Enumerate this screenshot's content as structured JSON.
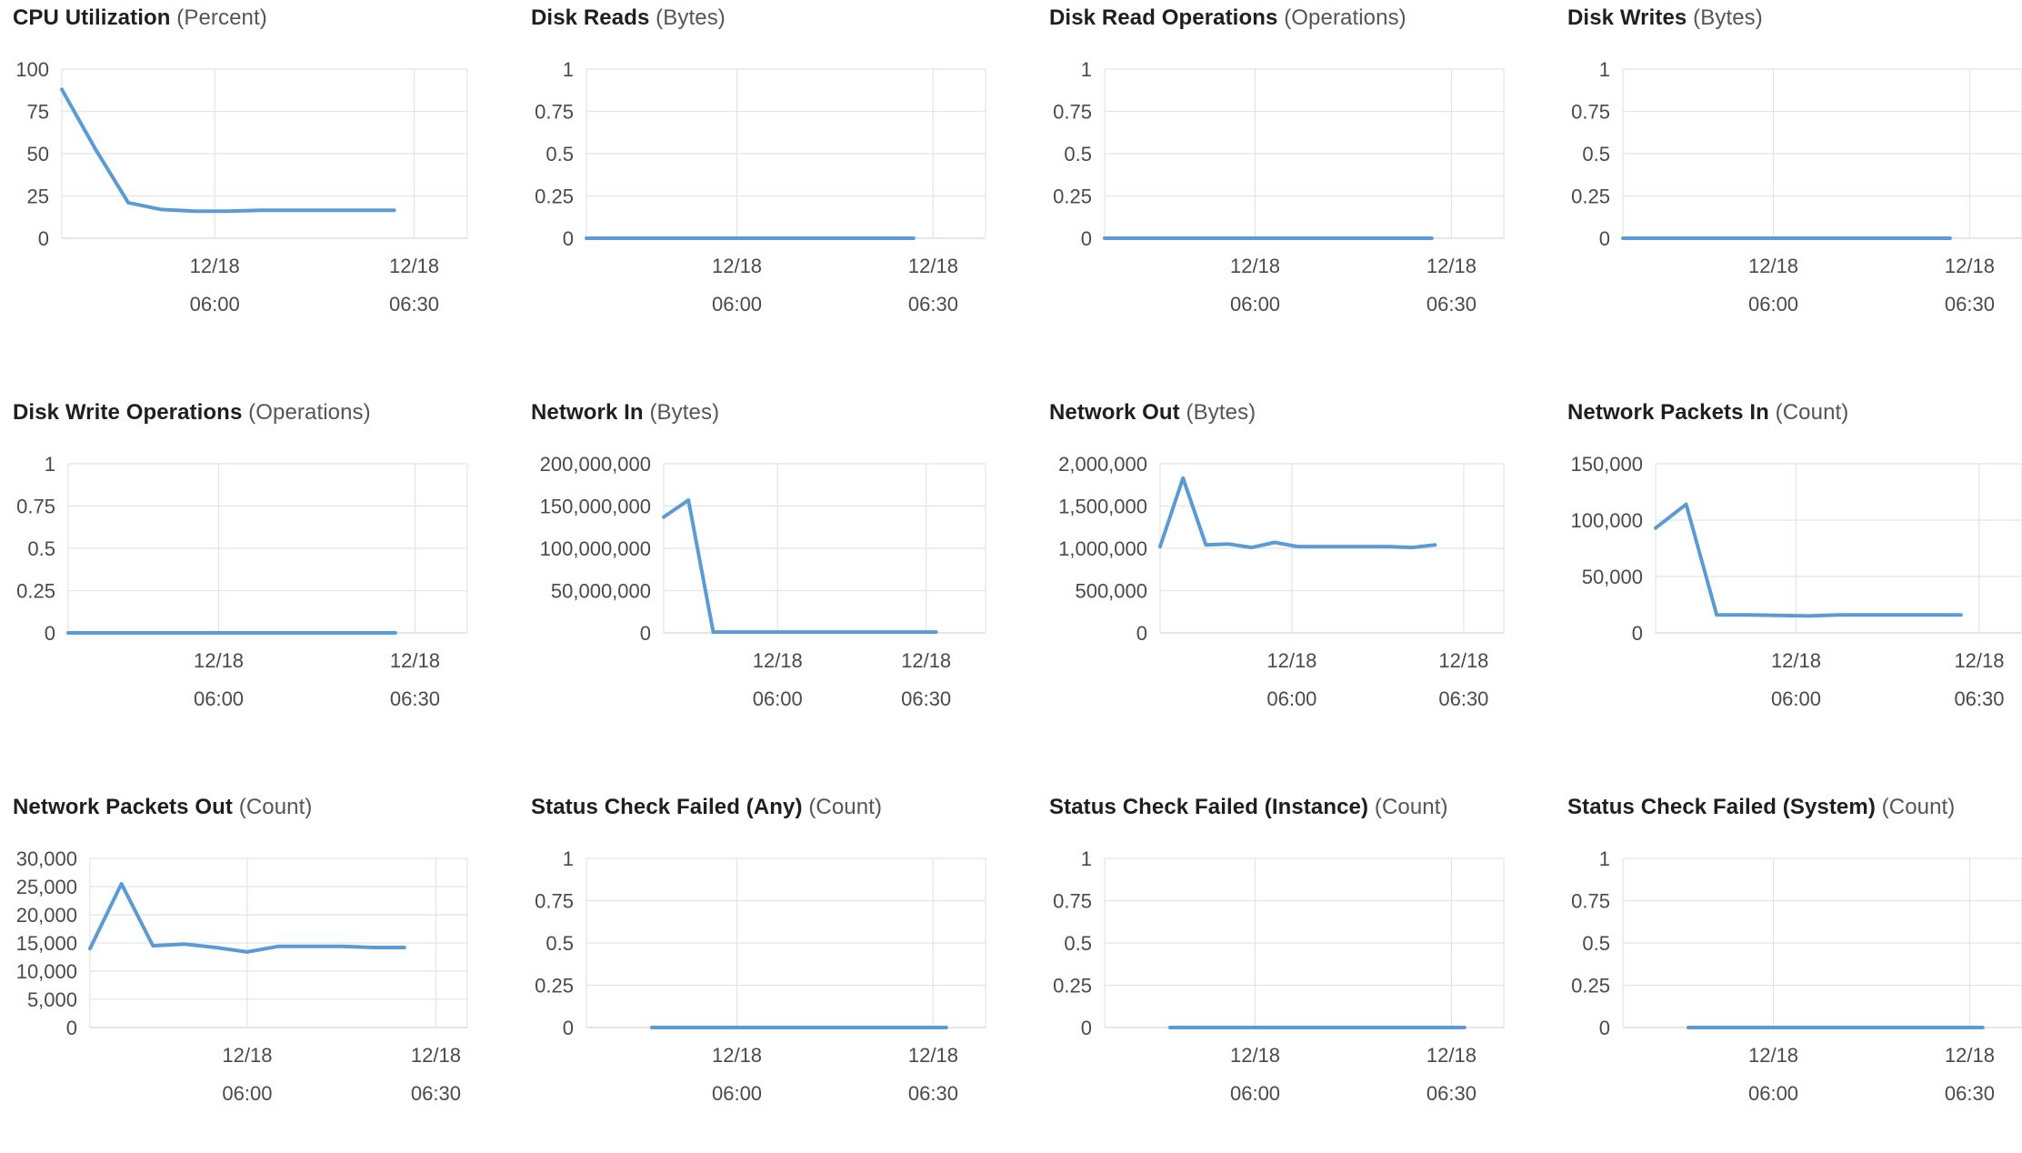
{
  "colors": {
    "series": "#5b9bd5",
    "grid": "#e4e4e4",
    "axis": "#d6d6d6"
  },
  "chart_data": [
    {
      "type": "line",
      "title": "CPU Utilization",
      "unit": "(Percent)",
      "yticks": [
        "100",
        "75",
        "50",
        "25",
        "0"
      ],
      "ylim": [
        0,
        100
      ],
      "xticks": [
        [
          "12/18",
          "06:00"
        ],
        [
          "12/18",
          "06:30"
        ]
      ],
      "xlim": [
        "05:37",
        "06:38"
      ],
      "series": [
        {
          "x": [
            "05:37",
            "05:42",
            "05:47",
            "05:52",
            "05:57",
            "06:02",
            "06:07",
            "06:12",
            "06:17",
            "06:22",
            "06:27"
          ],
          "y": [
            88,
            53,
            21,
            17,
            16,
            16,
            16.5,
            16.5,
            16.5,
            16.5,
            16.5
          ]
        }
      ]
    },
    {
      "type": "line",
      "title": "Disk Reads",
      "unit": "(Bytes)",
      "yticks": [
        "1",
        "0.75",
        "0.5",
        "0.25",
        "0"
      ],
      "ylim": [
        0,
        1
      ],
      "xticks": [
        [
          "12/18",
          "06:00"
        ],
        [
          "12/18",
          "06:30"
        ]
      ],
      "xlim": [
        "05:37",
        "06:38"
      ],
      "series": [
        {
          "x": [
            "05:37",
            "06:27"
          ],
          "y": [
            0,
            0
          ]
        }
      ]
    },
    {
      "type": "line",
      "title": "Disk Read Operations",
      "unit": "(Operations)",
      "yticks": [
        "1",
        "0.75",
        "0.5",
        "0.25",
        "0"
      ],
      "ylim": [
        0,
        1
      ],
      "xticks": [
        [
          "12/18",
          "06:00"
        ],
        [
          "12/18",
          "06:30"
        ]
      ],
      "xlim": [
        "05:37",
        "06:38"
      ],
      "series": [
        {
          "x": [
            "05:37",
            "06:27"
          ],
          "y": [
            0,
            0
          ]
        }
      ]
    },
    {
      "type": "line",
      "title": "Disk Writes",
      "unit": "(Bytes)",
      "yticks": [
        "1",
        "0.75",
        "0.5",
        "0.25",
        "0"
      ],
      "ylim": [
        0,
        1
      ],
      "xticks": [
        [
          "12/18",
          "06:00"
        ],
        [
          "12/18",
          "06:30"
        ]
      ],
      "xlim": [
        "05:37",
        "06:38"
      ],
      "series": [
        {
          "x": [
            "05:37",
            "06:27"
          ],
          "y": [
            0,
            0
          ]
        }
      ]
    },
    {
      "type": "line",
      "title": "Disk Write Operations",
      "unit": "(Operations)",
      "yticks": [
        "1",
        "0.75",
        "0.5",
        "0.25",
        "0"
      ],
      "ylim": [
        0,
        1
      ],
      "xticks": [
        [
          "12/18",
          "06:00"
        ],
        [
          "12/18",
          "06:30"
        ]
      ],
      "xlim": [
        "05:37",
        "06:38"
      ],
      "series": [
        {
          "x": [
            "05:37",
            "06:27"
          ],
          "y": [
            0,
            0
          ]
        }
      ]
    },
    {
      "type": "line",
      "title": "Network In",
      "unit": "(Bytes)",
      "yticks": [
        "200,000,000",
        "150,000,000",
        "100,000,000",
        "50,000,000",
        "0"
      ],
      "ylim": [
        0,
        200000000
      ],
      "xticks": [
        [
          "12/18",
          "06:00"
        ],
        [
          "12/18",
          "06:30"
        ]
      ],
      "xlim": [
        "05:37",
        "06:42"
      ],
      "series": [
        {
          "x": [
            "05:37",
            "05:42",
            "05:47",
            "05:52",
            "05:57",
            "06:02",
            "06:07",
            "06:12",
            "06:17",
            "06:22",
            "06:27",
            "06:32"
          ],
          "y": [
            137000000,
            157000000,
            1000000,
            1000000,
            1000000,
            1000000,
            1000000,
            1000000,
            1000000,
            1000000,
            1000000,
            1000000
          ]
        }
      ]
    },
    {
      "type": "line",
      "title": "Network Out",
      "unit": "(Bytes)",
      "yticks": [
        "2,000,000",
        "1,500,000",
        "1,000,000",
        "500,000",
        "0"
      ],
      "ylim": [
        0,
        2000000
      ],
      "xticks": [
        [
          "12/18",
          "06:00"
        ],
        [
          "12/18",
          "06:30"
        ]
      ],
      "xlim": [
        "05:37",
        "06:37"
      ],
      "series": [
        {
          "x": [
            "05:37",
            "05:41",
            "05:45",
            "05:49",
            "05:53",
            "05:57",
            "06:01",
            "06:05",
            "06:09",
            "06:13",
            "06:17",
            "06:21",
            "06:25"
          ],
          "y": [
            1020000,
            1830000,
            1040000,
            1050000,
            1010000,
            1070000,
            1020000,
            1020000,
            1020000,
            1020000,
            1020000,
            1010000,
            1040000
          ]
        }
      ]
    },
    {
      "type": "line",
      "title": "Network Packets In",
      "unit": "(Count)",
      "yticks": [
        "150,000",
        "100,000",
        "50,000",
        "0"
      ],
      "ylim": [
        0,
        150000
      ],
      "xticks": [
        [
          "12/18",
          "06:00"
        ],
        [
          "12/18",
          "06:30"
        ]
      ],
      "xlim": [
        "05:37",
        "06:37"
      ],
      "series": [
        {
          "x": [
            "05:37",
            "05:42",
            "05:47",
            "05:52",
            "05:57",
            "06:02",
            "06:07",
            "06:12",
            "06:17",
            "06:22",
            "06:27"
          ],
          "y": [
            93000,
            114000,
            16000,
            16000,
            15500,
            15000,
            16000,
            16000,
            16000,
            16000,
            16000
          ]
        }
      ]
    },
    {
      "type": "line",
      "title": "Network Packets Out",
      "unit": "(Count)",
      "yticks": [
        "30,000",
        "25,000",
        "20,000",
        "15,000",
        "10,000",
        "5,000",
        "0"
      ],
      "ylim": [
        0,
        30000
      ],
      "xticks": [
        [
          "12/18",
          "06:00"
        ],
        [
          "12/18",
          "06:30"
        ]
      ],
      "xlim": [
        "05:35",
        "06:35"
      ],
      "series": [
        {
          "x": [
            "05:35",
            "05:40",
            "05:45",
            "05:50",
            "05:55",
            "06:00",
            "06:05",
            "06:10",
            "06:15",
            "06:20",
            "06:25"
          ],
          "y": [
            14000,
            25500,
            14500,
            14800,
            14200,
            13400,
            14400,
            14400,
            14400,
            14200,
            14200
          ]
        }
      ]
    },
    {
      "type": "line",
      "title": "Status Check Failed (Any)",
      "unit": "(Count)",
      "yticks": [
        "1",
        "0.75",
        "0.5",
        "0.25",
        "0"
      ],
      "ylim": [
        0,
        1
      ],
      "xticks": [
        [
          "12/18",
          "06:00"
        ],
        [
          "12/18",
          "06:30"
        ]
      ],
      "xlim": [
        "05:37",
        "06:38"
      ],
      "series": [
        {
          "x": [
            "05:47",
            "06:32"
          ],
          "y": [
            0,
            0
          ]
        }
      ]
    },
    {
      "type": "line",
      "title": "Status Check Failed (Instance)",
      "unit": "(Count)",
      "yticks": [
        "1",
        "0.75",
        "0.5",
        "0.25",
        "0"
      ],
      "ylim": [
        0,
        1
      ],
      "xticks": [
        [
          "12/18",
          "06:00"
        ],
        [
          "12/18",
          "06:30"
        ]
      ],
      "xlim": [
        "05:37",
        "06:38"
      ],
      "series": [
        {
          "x": [
            "05:47",
            "06:32"
          ],
          "y": [
            0,
            0
          ]
        }
      ]
    },
    {
      "type": "line",
      "title": "Status Check Failed (System)",
      "unit": "(Count)",
      "yticks": [
        "1",
        "0.75",
        "0.5",
        "0.25",
        "0"
      ],
      "ylim": [
        0,
        1
      ],
      "xticks": [
        [
          "12/18",
          "06:00"
        ],
        [
          "12/18",
          "06:30"
        ]
      ],
      "xlim": [
        "05:37",
        "06:38"
      ],
      "series": [
        {
          "x": [
            "05:47",
            "06:32"
          ],
          "y": [
            0,
            0
          ]
        }
      ]
    }
  ]
}
